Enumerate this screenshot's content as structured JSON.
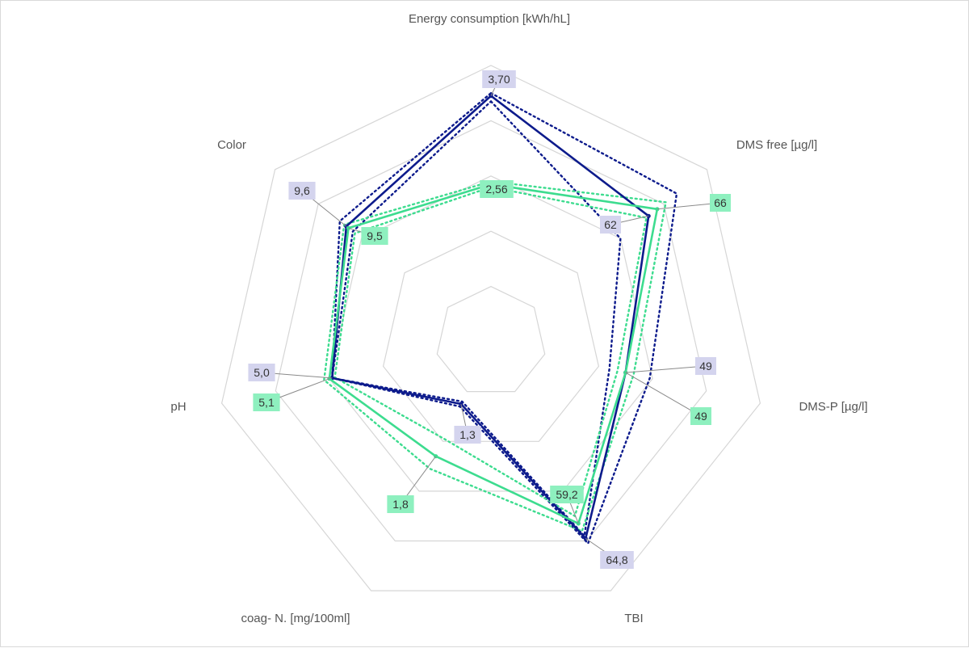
{
  "chart_data": {
    "type": "radar",
    "axes": [
      "Energy consumption [kWh/hL]",
      "DMS free [µg/l]",
      "DMS-P [µg/l]",
      "TBI",
      "coag- N. [mg/100ml]",
      "pH",
      "Color"
    ],
    "series": [
      {
        "color": "#0d1b8c",
        "value_labels": [
          "3,70",
          "62",
          "49",
          "64,8",
          "1,3",
          "5,0",
          "9,6"
        ],
        "values": [
          3.7,
          62,
          49,
          64.8,
          1.3,
          5.0,
          9.6
        ],
        "radial_position": [
          0.89,
          0.73,
          0.5,
          0.79,
          0.25,
          0.59,
          0.67
        ],
        "band_upper": [
          0.9,
          0.86,
          0.59,
          0.81,
          0.26,
          0.59,
          0.7
        ],
        "band_lower": [
          0.87,
          0.6,
          0.44,
          0.78,
          0.24,
          0.59,
          0.64
        ],
        "label_fill": "#d4d4ee"
      },
      {
        "color": "#3ddc8f",
        "value_labels": [
          "2,56",
          "66",
          "49",
          "59,2",
          "1,8",
          "5,1",
          "9,5"
        ],
        "values": [
          2.56,
          66,
          49,
          59.2,
          1.8,
          5.1,
          9.5
        ],
        "radial_position": [
          0.57,
          0.77,
          0.5,
          0.73,
          0.46,
          0.6,
          0.66
        ],
        "band_upper": [
          0.58,
          0.81,
          0.53,
          0.76,
          0.51,
          0.62,
          0.68
        ],
        "band_lower": [
          0.56,
          0.72,
          0.47,
          0.7,
          0.39,
          0.58,
          0.63
        ],
        "label_fill": "#8ef0bf"
      }
    ],
    "rings": 5,
    "grid": true,
    "legend": "none"
  }
}
